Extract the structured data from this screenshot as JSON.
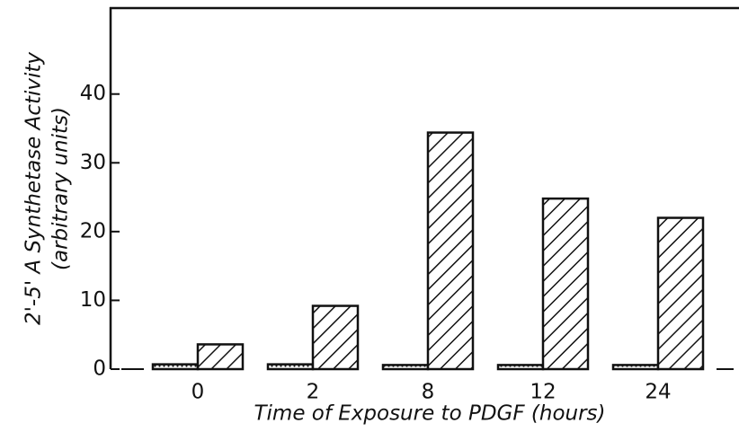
{
  "chart_data": {
    "type": "bar",
    "x_label": "Time of Exposure to PDGF (hours)",
    "y_label": [
      "2'-5' A Synthetase Activity",
      "(arbitrary units)"
    ],
    "categories": [
      "0",
      "2",
      "8",
      "12",
      "24"
    ],
    "series": [
      {
        "color": "#111111",
        "pattern": "dotted",
        "values": [
          0.7,
          0.7,
          0.6,
          0.6,
          0.6
        ]
      },
      {
        "color": "#111111",
        "pattern": "hatched",
        "values": [
          3.6,
          9.2,
          34.4,
          24.8,
          22.0
        ]
      }
    ],
    "ylim": [
      0,
      52.5
    ],
    "yticks": [
      0,
      10,
      20,
      30,
      40
    ]
  }
}
